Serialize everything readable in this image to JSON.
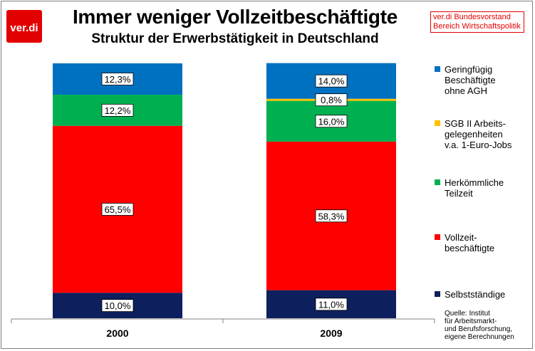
{
  "header": {
    "logo_text": "ver.di",
    "title": "Immer weniger Vollzeitbeschäftigte",
    "subtitle": "Struktur der Erwerbstätigkeit in Deutschland",
    "org_line1": "ver.di  Bundesvorstand",
    "org_line2": "Bereich Wirtschaftspolitik"
  },
  "source": "Quelle: Institut\nfür Arbeitsmarkt-\nund Berufsforschung,\neigene Berechnungen",
  "colors": {
    "logo": "#e20000",
    "selbststaendige": "#0d1f5c",
    "vollzeit": "#ff0000",
    "teilzeit": "#00b050",
    "sgb": "#ffc000",
    "geringfuegig": "#0070c0"
  },
  "chart_data": {
    "type": "bar",
    "stacked": true,
    "categories": [
      "2000",
      "2009"
    ],
    "ylim": [
      0,
      100
    ],
    "series": [
      {
        "name": "Selbstständige",
        "color_key": "selbststaendige",
        "values": [
          10.0,
          11.0
        ],
        "labels": [
          "10,0%",
          "11,0%"
        ]
      },
      {
        "name": "Vollzeit-\nbeschäftigte",
        "color_key": "vollzeit",
        "values": [
          65.5,
          58.3
        ],
        "labels": [
          "65,5%",
          "58,3%"
        ]
      },
      {
        "name": "Herkömmliche\nTeilzeit",
        "color_key": "teilzeit",
        "values": [
          12.2,
          16.0
        ],
        "labels": [
          "12,2%",
          "16,0%"
        ]
      },
      {
        "name": "SGB II Arbeits-\ngelegenheiten\nv.a. 1-Euro-Jobs",
        "color_key": "sgb",
        "values": [
          0,
          0.8
        ],
        "labels": [
          "",
          "0,8%"
        ]
      },
      {
        "name": "Geringfügig\nBeschäftigte\nohne AGH",
        "color_key": "geringfuegig",
        "values": [
          12.3,
          14.0
        ],
        "labels": [
          "12,3%",
          "14,0%"
        ]
      }
    ],
    "legend_position": "right",
    "grid": false
  }
}
